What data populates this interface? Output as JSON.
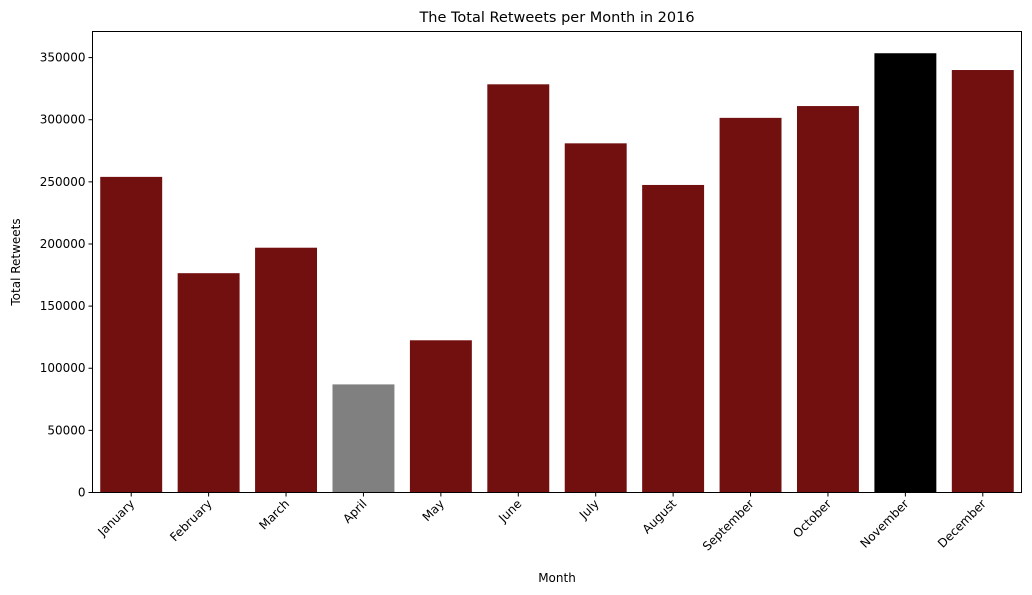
{
  "chart_data": {
    "type": "bar",
    "title": "The Total Retweets per Month in 2016",
    "xlabel": "Month",
    "ylabel": "Total Retweets",
    "categories": [
      "January",
      "February",
      "March",
      "April",
      "May",
      "June",
      "July",
      "August",
      "September",
      "October",
      "November",
      "December"
    ],
    "values": [
      254000,
      176500,
      197000,
      87000,
      122500,
      328500,
      281000,
      247500,
      301500,
      311000,
      353500,
      340000
    ],
    "colors": [
      "#720f0f",
      "#720f0f",
      "#720f0f",
      "#808080",
      "#720f0f",
      "#720f0f",
      "#720f0f",
      "#720f0f",
      "#720f0f",
      "#720f0f",
      "#000000",
      "#720f0f"
    ],
    "ylim": [
      0,
      371000
    ],
    "yticks": [
      0,
      50000,
      100000,
      150000,
      200000,
      250000,
      300000,
      350000
    ],
    "ytick_labels": [
      "0",
      "50000",
      "100000",
      "150000",
      "200000",
      "250000",
      "300000",
      "350000"
    ],
    "grid": false,
    "legend": "none"
  }
}
